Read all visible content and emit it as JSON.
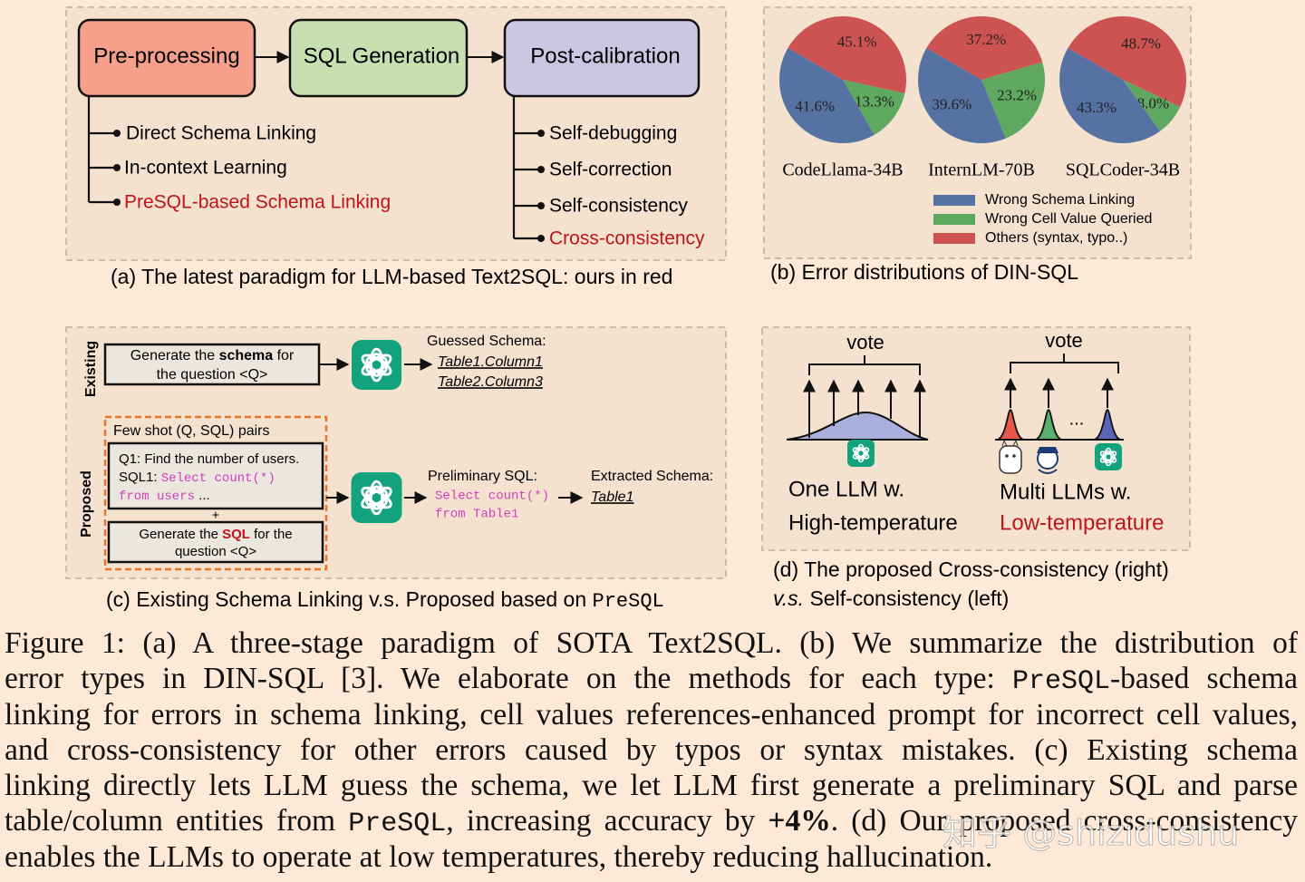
{
  "panel_a": {
    "stages": [
      "Pre-processing",
      "SQL Generation",
      "Post-calibration"
    ],
    "pre_processing": [
      "Direct Schema Linking",
      "In-context Learning",
      "PreSQL-based Schema Linking"
    ],
    "post_calibration": [
      "Self-debugging",
      "Self-correction",
      "Self-consistency",
      "Cross-consistency"
    ],
    "caption": "(a) The latest paradigm for LLM-based Text2SQL: ours in red"
  },
  "panel_b": {
    "pies": [
      {
        "name": "CodeLlama-34B",
        "values": [
          41.6,
          13.3,
          45.1
        ],
        "value_labels": [
          "41.6%",
          "13.3%",
          "45.1%"
        ]
      },
      {
        "name": "InternLM-70B",
        "values": [
          39.6,
          23.2,
          37.2
        ],
        "value_labels": [
          "39.6%",
          "23.2%",
          "37.2%"
        ]
      },
      {
        "name": "SQLCoder-34B",
        "values": [
          43.3,
          8.0,
          48.7
        ],
        "value_labels": [
          "43.3%",
          "8.0%",
          "48.7%"
        ]
      }
    ],
    "legend": [
      {
        "name": "Wrong Schema Linking",
        "color": "#5572a3"
      },
      {
        "name": "Wrong Cell Value Queried",
        "color": "#5fa860"
      },
      {
        "name": "Others (syntax, typo..)",
        "color": "#cd5352"
      }
    ],
    "caption": "(b) Error distributions of DIN-SQL"
  },
  "panel_c": {
    "existing": {
      "label": "Existing",
      "prompt": [
        "Generate the ",
        "schema",
        " for",
        "the question <Q>"
      ],
      "output_title": "Guessed Schema:",
      "outputs": [
        "Table1.Column1",
        "Table2.Column3"
      ]
    },
    "proposed": {
      "label": "Proposed",
      "few_shot_title": "Few shot (Q, SQL) pairs",
      "example": [
        "Q1: Find the number of users.",
        "SQL1: ",
        "Select count(*)",
        "from users",
        " ..."
      ],
      "plus": "+",
      "prompt": [
        "Generate the ",
        "SQL",
        " for the",
        "question <Q>"
      ],
      "preliminary_title": "Preliminary SQL:",
      "preliminary_sql": [
        "Select count(*)",
        "from Table1"
      ],
      "extracted_title": "Extracted Schema:",
      "extracted": "Table1"
    },
    "caption": [
      "(c) Existing Schema Linking v.s. Proposed based on ",
      "PreSQL"
    ]
  },
  "panel_d": {
    "left": {
      "vote": "vote",
      "lines": [
        "One LLM w.",
        "High-temperature"
      ]
    },
    "right": {
      "vote": "vote",
      "ellipsis": "...",
      "lines": [
        "Multi LLMs w.",
        "Low-temperature"
      ]
    },
    "caption": [
      "(d) The proposed Cross-consistency (right)",
      "v.s.",
      " Self-consistency (left)"
    ]
  },
  "caption": [
    [
      "Figure 1: (a) A three-stage paradigm of SOTA Text2SQL. (b) We summarize the distribution of"
    ],
    [
      "error types in DIN-SQL [3].  We elaborate on the methods for each type: ",
      "PreSQL",
      "-based schema"
    ],
    [
      "linking for errors in schema linking, cell values references-enhanced prompt for incorrect cell values,"
    ],
    [
      "and cross-consistency for other errors caused by typos or syntax mistakes.  (c) Existing schema"
    ],
    [
      "linking directly lets LLM guess the schema, we let LLM first generate a preliminary SQL and parse"
    ],
    [
      "table/column entities from ",
      "PreSQL",
      ", increasing accuracy by ",
      "+4%",
      ". (d) Our proposed cross-consistency"
    ],
    [
      "enables the LLMs to operate at low temperatures, thereby reducing hallucination."
    ]
  ],
  "watermark": "知乎 @shizidushu"
}
